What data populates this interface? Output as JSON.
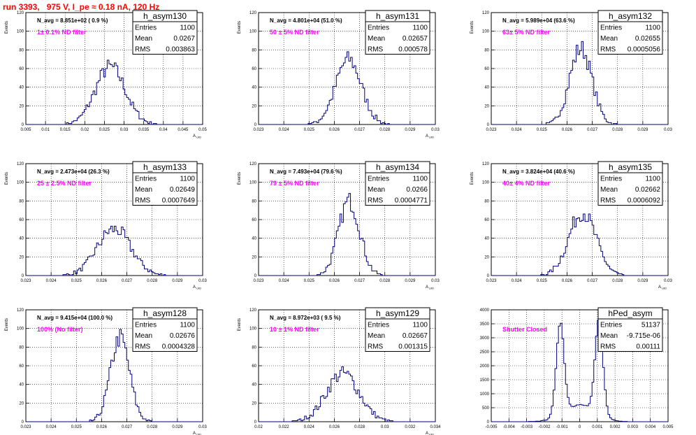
{
  "page_title": "run 3393,   975 V, I_pe ≈ 0.18 nA, 120 Hz",
  "stats_labels": {
    "entries": "Entries",
    "mean": "Mean",
    "rms": "RMS"
  },
  "colors": {
    "histogram": "#00007f",
    "annotation": "#ff00ff",
    "title": "#ff0000",
    "grid": "#000000"
  },
  "chart_data": [
    {
      "type": "bar",
      "name": "h_asym130",
      "ylabel": "Events",
      "xlabel": "A_UID",
      "xlim": [
        0.005,
        0.05
      ],
      "ylim": [
        0,
        120
      ],
      "xticks": [
        "0.005",
        "0.01",
        "0.015",
        "0.02",
        "0.025",
        "0.03",
        "0.035",
        "0.04",
        "0.045",
        "0.05"
      ],
      "yticks": [
        "0",
        "20",
        "40",
        "60",
        "80",
        "100",
        "120"
      ],
      "stats": {
        "entries": "1100",
        "mean": "0.0267",
        "rms": "0.003863"
      },
      "navg": "N_avg = 8.851e+02 ( 0.9 %)",
      "filter": "1± 0.1% ND filter",
      "peaks": [
        {
          "center": 0.0265,
          "sigma": 0.0038,
          "amplitude": 62
        }
      ]
    },
    {
      "type": "bar",
      "name": "h_asym131",
      "ylabel": "Events",
      "xlabel": "A_UID",
      "xlim": [
        0.0225,
        0.0305
      ],
      "ylim": [
        0,
        120
      ],
      "xticks": [
        "0.023",
        "0.024",
        "0.025",
        "0.026",
        "0.027",
        "0.028",
        "0.029",
        "0.03"
      ],
      "yticks": [
        "0",
        "20",
        "40",
        "60",
        "80",
        "100",
        "120"
      ],
      "stats": {
        "entries": "1100",
        "mean": "0.02657",
        "rms": "0.000578"
      },
      "navg": "N_avg = 4.801e+04 (51.0 %)",
      "filter": "50 ± 5% ND filter",
      "peaks": [
        {
          "center": 0.02657,
          "sigma": 0.00058,
          "amplitude": 70
        }
      ]
    },
    {
      "type": "bar",
      "name": "h_asym132",
      "ylabel": "Events",
      "xlabel": "",
      "xlim": [
        0.0225,
        0.0305
      ],
      "ylim": [
        0,
        120
      ],
      "xticks": [
        "0.023",
        "0.024",
        "0.025",
        "0.026",
        "0.027",
        "0.028",
        "0.029",
        "0.03"
      ],
      "yticks": [
        "0",
        "20",
        "40",
        "60",
        "80",
        "100",
        "120"
      ],
      "stats": {
        "entries": "1100",
        "mean": "0.02655",
        "rms": "0.0005056"
      },
      "navg": "N_avg = 5.989e+04 (63.6 %)",
      "filter": "63± 5% ND filter",
      "peaks": [
        {
          "center": 0.02655,
          "sigma": 0.0005,
          "amplitude": 82
        }
      ]
    },
    {
      "type": "bar",
      "name": "h_asym133",
      "ylabel": "Events",
      "xlabel": "A_UID",
      "xlim": [
        0.0225,
        0.0305
      ],
      "ylim": [
        0,
        120
      ],
      "xticks": [
        "0.023",
        "0.024",
        "0.025",
        "0.026",
        "0.027",
        "0.028",
        "0.029",
        "0.03"
      ],
      "yticks": [
        "0",
        "20",
        "40",
        "60",
        "80",
        "100",
        "120"
      ],
      "stats": {
        "entries": "1100",
        "mean": "0.02649",
        "rms": "0.0007649"
      },
      "navg": "N_avg = 2.473e+04 (26.3 %)",
      "filter": "25 ± 2.5% ND filter",
      "peaks": [
        {
          "center": 0.02649,
          "sigma": 0.00076,
          "amplitude": 50
        }
      ]
    },
    {
      "type": "bar",
      "name": "h_asym134",
      "ylabel": "Events",
      "xlabel": "A_UID",
      "xlim": [
        0.0225,
        0.0305
      ],
      "ylim": [
        0,
        120
      ],
      "xticks": [
        "0.023",
        "0.024",
        "0.025",
        "0.026",
        "0.027",
        "0.028",
        "0.029",
        "0.03"
      ],
      "yticks": [
        "0",
        "20",
        "40",
        "60",
        "80",
        "100",
        "120"
      ],
      "stats": {
        "entries": "1100",
        "mean": "0.0266",
        "rms": "0.0004771"
      },
      "navg": "N_avg = 7.493e+04 (79.6 %)",
      "filter": "79 ± 5% ND filter",
      "peaks": [
        {
          "center": 0.0266,
          "sigma": 0.00048,
          "amplitude": 80
        }
      ]
    },
    {
      "type": "bar",
      "name": "h_asym135",
      "ylabel": "Events",
      "xlabel": "A_UID",
      "xlim": [
        0.0225,
        0.0305
      ],
      "ylim": [
        0,
        120
      ],
      "xticks": [
        "0.023",
        "0.024",
        "0.025",
        "0.026",
        "0.027",
        "0.028",
        "0.029",
        "0.03"
      ],
      "yticks": [
        "0",
        "20",
        "40",
        "60",
        "80",
        "100",
        "120"
      ],
      "stats": {
        "entries": "1100",
        "mean": "0.02662",
        "rms": "0.0006092"
      },
      "navg": "N_avg = 3.824e+04 (40.6 %)",
      "filter": "40± 4% ND filter",
      "peaks": [
        {
          "center": 0.02662,
          "sigma": 0.00061,
          "amplitude": 68
        }
      ]
    },
    {
      "type": "bar",
      "name": "h_asym128",
      "ylabel": "Events",
      "xlabel": "A_UID",
      "xlim": [
        0.0225,
        0.0305
      ],
      "ylim": [
        0,
        120
      ],
      "xticks": [
        "0.023",
        "0.024",
        "0.025",
        "0.026",
        "0.027",
        "0.028",
        "0.029",
        "0.03"
      ],
      "yticks": [
        "0",
        "20",
        "40",
        "60",
        "80",
        "100",
        "120"
      ],
      "stats": {
        "entries": "1100",
        "mean": "0.02676",
        "rms": "0.0004328"
      },
      "navg": "N_avg = 9.415e+04 (100.0 %)",
      "filter": "100% (No filter)",
      "peaks": [
        {
          "center": 0.02676,
          "sigma": 0.00043,
          "amplitude": 90
        }
      ]
    },
    {
      "type": "bar",
      "name": "h_asym129",
      "ylabel": "Events",
      "xlabel": "A_UID",
      "xlim": [
        0.02,
        0.034
      ],
      "ylim": [
        0,
        120
      ],
      "xticks": [
        "0.02",
        "0.022",
        "0.024",
        "0.026",
        "0.028",
        "0.03",
        "0.032",
        "0.034"
      ],
      "yticks": [
        "0",
        "20",
        "40",
        "60",
        "80",
        "100",
        "120"
      ],
      "stats": {
        "entries": "1100",
        "mean": "0.02667",
        "rms": "0.001315"
      },
      "navg": "N_avg = 8.972e+03 ( 9.5 %)",
      "filter": "10 ± 1% ND filter",
      "peaks": [
        {
          "center": 0.02667,
          "sigma": 0.0013,
          "amplitude": 52
        }
      ]
    },
    {
      "type": "bar",
      "name": "hPed_asym",
      "ylabel": "",
      "xlabel": "",
      "xlim": [
        -0.005,
        0.005
      ],
      "ylim": [
        0,
        4000
      ],
      "xticks": [
        "-0.005",
        "-0.004",
        "-0.003",
        "-0.002",
        "-0.001",
        "0",
        "0.001",
        "0.002",
        "0.003",
        "0.004",
        "0.005"
      ],
      "yticks": [
        "0",
        "500",
        "1000",
        "1500",
        "2000",
        "2500",
        "3000",
        "3500",
        "4000"
      ],
      "stats": {
        "entries": "51137",
        "mean": "-9.715e-06",
        "rms": "0.00111"
      },
      "navg": "",
      "filter": "Shutter Closed",
      "peaks": [
        {
          "center": -0.0011,
          "sigma": 0.00022,
          "amplitude": 3300
        },
        {
          "center": 0.0011,
          "sigma": 0.00022,
          "amplitude": 3400
        },
        {
          "center": 0.0,
          "sigma": 0.0009,
          "amplitude": 600
        }
      ]
    }
  ]
}
